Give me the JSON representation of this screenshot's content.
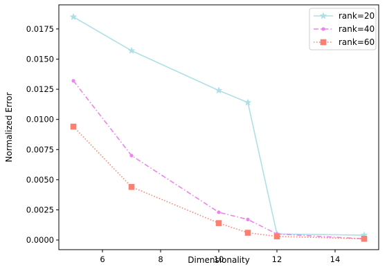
{
  "chart_data": {
    "type": "line",
    "title": "",
    "xlabel": "Dimensionality",
    "ylabel": "Normalized Error",
    "xlim": [
      4.5,
      15.5
    ],
    "ylim": [
      -0.0008,
      0.0195
    ],
    "xticks": [
      6,
      8,
      10,
      12,
      14
    ],
    "xtick_labels": [
      "6",
      "8",
      "10",
      "12",
      "14"
    ],
    "yticks": [
      0.0,
      0.0025,
      0.005,
      0.0075,
      0.01,
      0.0125,
      0.015,
      0.0175
    ],
    "ytick_labels": [
      "0.0000",
      "0.0025",
      "0.0050",
      "0.0075",
      "0.0100",
      "0.0125",
      "0.0150",
      "0.0175"
    ],
    "grid": false,
    "legend_position": "top-right",
    "x": [
      5,
      7,
      10,
      11,
      12,
      15
    ],
    "series": [
      {
        "name": "rank=20",
        "color": "#ade0e6",
        "linestyle": "solid",
        "marker": "star",
        "values": [
          0.0185,
          0.0157,
          0.0124,
          0.0114,
          0.0005,
          0.0004
        ]
      },
      {
        "name": "rank=40",
        "color": "#ee82ee",
        "linestyle": "dashdot",
        "marker": "circle",
        "values": [
          0.0132,
          0.007,
          0.0023,
          0.0017,
          0.0005,
          0.0001
        ]
      },
      {
        "name": "rank=60",
        "color": "#fa8072",
        "linestyle": "dotted",
        "marker": "square",
        "values": [
          0.0094,
          0.0044,
          0.0014,
          0.0006,
          0.0003,
          0.0001
        ]
      }
    ]
  }
}
